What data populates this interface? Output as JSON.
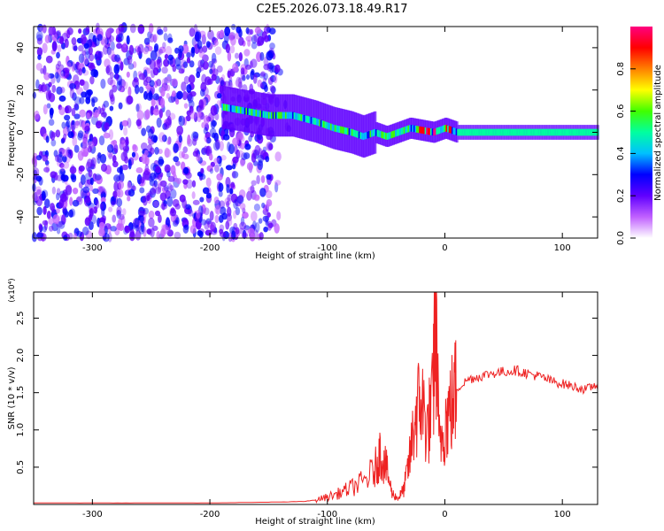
{
  "title": "C2E5.2026.073.18.49.R17",
  "chart_data": [
    {
      "type": "heatmap",
      "xlabel": "Height of straight line (km)",
      "ylabel": "Frequency (Hz)",
      "xlim": [
        -350,
        130
      ],
      "ylim": [
        -50,
        50
      ],
      "x_ticks": [
        -300,
        -200,
        -100,
        0,
        100
      ],
      "y_ticks": [
        -40,
        -20,
        0,
        20,
        40
      ],
      "colorbar": {
        "label": "Normalized spectral amplitude",
        "range": [
          0,
          1
        ],
        "ticks": [
          "0.0",
          "0.2",
          "0.4",
          "0.6",
          "0.8"
        ],
        "colors": [
          "#ffffff",
          "#c060ff",
          "#6000ff",
          "#0000ff",
          "#00c0ff",
          "#00ffa0",
          "#40ff00",
          "#ffff00",
          "#ff8000",
          "#ff0000",
          "#ff0080"
        ]
      },
      "ridge": {
        "x": [
          -190,
          -170,
          -150,
          -130,
          -110,
          -95,
          -80,
          -70,
          -60,
          -50,
          -40,
          -30,
          -20,
          -10,
          0,
          10,
          50,
          100,
          130
        ],
        "y": [
          12,
          10,
          8,
          8,
          5,
          2,
          0,
          -2,
          0,
          -2,
          0,
          2,
          1,
          0,
          2,
          0,
          0,
          0,
          0
        ]
      },
      "noise_region_x": [
        -350,
        -145
      ]
    },
    {
      "type": "line",
      "xlabel": "Height of straight line (km)",
      "ylabel": "SNR (10 * v/v)",
      "y_multiplier": "(x10⁴)",
      "xlim": [
        -350,
        130
      ],
      "ylim": [
        0,
        2.85
      ],
      "x_ticks": [
        -300,
        -200,
        -100,
        0,
        100
      ],
      "y_ticks": [
        "0.5",
        "1.0",
        "1.5",
        "2.0",
        "2.5"
      ],
      "color": "#ee2222",
      "x": [
        -350,
        -300,
        -250,
        -200,
        -150,
        -120,
        -110,
        -100,
        -90,
        -80,
        -70,
        -60,
        -55,
        -50,
        -45,
        -40,
        -35,
        -30,
        -25,
        -20,
        -15,
        -10,
        -8,
        -5,
        0,
        5,
        10,
        20,
        30,
        40,
        50,
        60,
        70,
        80,
        90,
        100,
        110,
        120,
        130
      ],
      "y": [
        0.02,
        0.02,
        0.02,
        0.02,
        0.03,
        0.04,
        0.06,
        0.1,
        0.15,
        0.22,
        0.3,
        0.45,
        0.7,
        0.5,
        0.15,
        0.08,
        0.2,
        0.6,
        1.2,
        1.4,
        1.0,
        1.4,
        2.85,
        0.8,
        1.1,
        1.3,
        1.55,
        1.68,
        1.72,
        1.76,
        1.78,
        1.8,
        1.76,
        1.72,
        1.66,
        1.62,
        1.58,
        1.54,
        1.62
      ]
    }
  ]
}
